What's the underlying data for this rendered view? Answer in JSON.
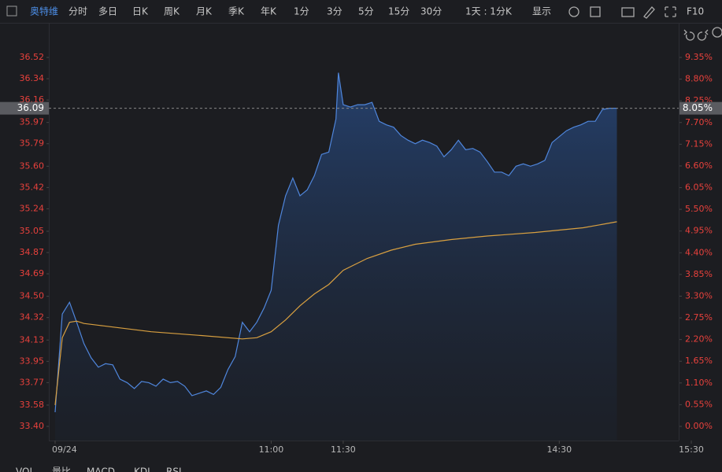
{
  "toolbar": {
    "stock": "奥特维",
    "tabs": [
      "分时",
      "多日",
      "日K",
      "周K",
      "月K",
      "季K",
      "年K",
      "1分",
      "3分",
      "5分",
      "15分",
      "30分",
      "1天 : 1分K",
      "显示"
    ],
    "f10": "F10"
  },
  "chart_data": {
    "type": "line",
    "series": [
      {
        "name": "price",
        "color": "#4f86dc",
        "x": [
          0,
          3,
          6,
          9,
          12,
          15,
          18,
          21,
          24,
          27,
          30,
          33,
          36,
          39,
          42,
          45,
          48,
          51,
          54,
          57,
          60,
          63,
          66,
          69,
          72,
          75,
          78,
          81,
          84,
          87,
          90,
          93,
          96,
          99,
          102,
          105,
          108,
          111,
          114,
          117,
          118,
          120,
          123,
          126,
          129,
          132,
          135,
          138,
          141,
          144,
          147,
          150,
          153,
          156,
          159,
          162,
          165,
          168,
          171,
          174,
          177,
          180,
          183,
          186,
          189,
          192,
          195,
          198,
          201,
          204,
          207,
          210,
          213,
          216,
          219,
          222,
          225,
          228,
          231,
          234
        ],
        "values": [
          33.52,
          34.35,
          34.45,
          34.28,
          34.1,
          33.98,
          33.9,
          33.93,
          33.92,
          33.8,
          33.77,
          33.72,
          33.78,
          33.77,
          33.74,
          33.8,
          33.77,
          33.78,
          33.74,
          33.66,
          33.68,
          33.7,
          33.67,
          33.73,
          33.88,
          33.99,
          34.28,
          34.2,
          34.28,
          34.4,
          34.55,
          35.1,
          35.35,
          35.5,
          35.35,
          35.4,
          35.52,
          35.7,
          35.72,
          36.0,
          36.39,
          36.12,
          36.1,
          36.12,
          36.12,
          36.14,
          35.98,
          35.95,
          35.93,
          35.86,
          35.82,
          35.79,
          35.82,
          35.8,
          35.77,
          35.68,
          35.74,
          35.82,
          35.74,
          35.75,
          35.72,
          35.64,
          35.55,
          35.55,
          35.52,
          35.6,
          35.62,
          35.6,
          35.62,
          35.65,
          35.8,
          35.85,
          35.9,
          35.93,
          35.95,
          35.98,
          35.98,
          36.08,
          36.09,
          36.09
        ]
      },
      {
        "name": "average",
        "color": "#d9a040",
        "x": [
          0,
          3,
          6,
          9,
          12,
          20,
          40,
          60,
          78,
          84,
          90,
          96,
          102,
          108,
          114,
          120,
          130,
          140,
          150,
          165,
          180,
          200,
          220,
          234
        ],
        "values": [
          33.58,
          34.15,
          34.28,
          34.29,
          34.27,
          34.25,
          34.2,
          34.17,
          34.14,
          34.15,
          34.2,
          34.3,
          34.42,
          34.52,
          34.6,
          34.72,
          34.82,
          34.89,
          34.94,
          34.98,
          35.01,
          35.04,
          35.08,
          35.13
        ]
      }
    ],
    "xlim": [
      0,
      265
    ],
    "xticks": [
      {
        "value": 0,
        "label": "09/24"
      },
      {
        "value": 90,
        "label": "11:00"
      },
      {
        "value": 120,
        "label": "11:30"
      },
      {
        "value": 210,
        "label": "14:30"
      },
      {
        "value": 265,
        "label": "15:30"
      }
    ],
    "ylim": [
      33.4,
      36.52
    ],
    "yticks": [
      {
        "value": 33.4,
        "label": "33.40"
      },
      33.58,
      33.77,
      33.95,
      34.13,
      34.32,
      {
        "value": 34.5,
        "label": "34.50"
      },
      34.69,
      34.87,
      35.05,
      35.24,
      35.42,
      {
        "value": 35.6,
        "label": "35.60"
      },
      35.79,
      35.97,
      36.16,
      36.34,
      36.52
    ],
    "y2lim": [
      0,
      9.35
    ],
    "y2ticks": [
      {
        "value": 0,
        "label": "0.00%"
      },
      {
        "value": 0.55,
        "label": "0.55%"
      },
      {
        "value": 1.1,
        "label": "1.10%"
      },
      {
        "value": 1.65,
        "label": "1.65%"
      },
      {
        "value": 2.2,
        "label": "2.20%"
      },
      {
        "value": 2.75,
        "label": "2.75%"
      },
      {
        "value": 3.3,
        "label": "3.30%"
      },
      {
        "value": 3.85,
        "label": "3.85%"
      },
      {
        "value": 4.4,
        "label": "4.40%"
      },
      {
        "value": 4.95,
        "label": "4.95%"
      },
      {
        "value": 5.5,
        "label": "5.50%"
      },
      {
        "value": 6.05,
        "label": "6.05%"
      },
      {
        "value": 6.6,
        "label": "6.60%"
      },
      {
        "value": 7.15,
        "label": "7.15%"
      },
      {
        "value": 7.7,
        "label": "7.70%"
      },
      {
        "value": 8.25,
        "label": "8.25%"
      },
      {
        "value": 8.8,
        "label": "8.80%"
      },
      {
        "value": 9.35,
        "label": "9.35%"
      }
    ],
    "current_price": 36.09,
    "current_change": {
      "value": 8.05,
      "label": "8.05%"
    },
    "grid": false
  },
  "indicator_tabs": [
    "VOL",
    "量比",
    "MACD",
    "KDJ",
    "RSI"
  ]
}
